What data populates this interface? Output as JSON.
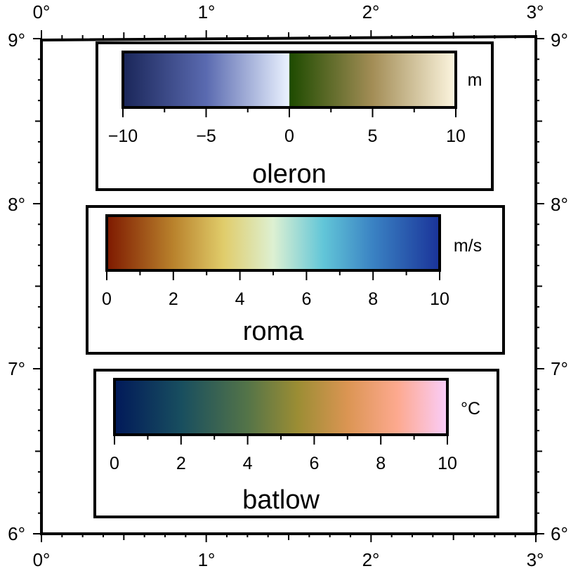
{
  "map": {
    "frame": {
      "lon_range": [
        0,
        3
      ],
      "lat_range": [
        6,
        9
      ]
    },
    "axis_labels": {
      "lon": [
        "0°",
        "1°",
        "2°",
        "3°"
      ],
      "lat": [
        "6°",
        "7°",
        "8°",
        "9°"
      ]
    }
  },
  "colorbars": [
    {
      "name": "oleron",
      "title": "oleron",
      "unit": "m",
      "range": [
        -10,
        10
      ],
      "ticks": [
        "−10",
        "−5",
        "0",
        "5",
        "10"
      ],
      "colors": [
        {
          "stop": 0.0,
          "color": "#1a2659"
        },
        {
          "stop": 0.25,
          "color": "#5a6ab0"
        },
        {
          "stop": 0.499,
          "color": "#eaf2ff"
        },
        {
          "stop": 0.501,
          "color": "#1e4b00"
        },
        {
          "stop": 0.75,
          "color": "#a38d56"
        },
        {
          "stop": 1.0,
          "color": "#fdf6e0"
        }
      ]
    },
    {
      "name": "roma",
      "title": "roma",
      "unit": "m/s",
      "range": [
        0,
        10
      ],
      "ticks": [
        "0",
        "2",
        "4",
        "6",
        "8",
        "10"
      ],
      "colors": [
        {
          "stop": 0.0,
          "color": "#7e1900"
        },
        {
          "stop": 0.2,
          "color": "#b9822c"
        },
        {
          "stop": 0.35,
          "color": "#e0cc6a"
        },
        {
          "stop": 0.5,
          "color": "#ddf0d2"
        },
        {
          "stop": 0.65,
          "color": "#62c6d8"
        },
        {
          "stop": 0.8,
          "color": "#3a82c3"
        },
        {
          "stop": 1.0,
          "color": "#1a3399"
        }
      ]
    },
    {
      "name": "batlow",
      "title": "batlow",
      "unit": "°C",
      "range": [
        0,
        10
      ],
      "ticks": [
        "0",
        "2",
        "4",
        "6",
        "8",
        "10"
      ],
      "colors": [
        {
          "stop": 0.0,
          "color": "#011959"
        },
        {
          "stop": 0.2,
          "color": "#184e5f"
        },
        {
          "stop": 0.4,
          "color": "#547448"
        },
        {
          "stop": 0.55,
          "color": "#9b8d34"
        },
        {
          "stop": 0.7,
          "color": "#db9553"
        },
        {
          "stop": 0.85,
          "color": "#fda98f"
        },
        {
          "stop": 1.0,
          "color": "#facdfa"
        }
      ]
    }
  ]
}
